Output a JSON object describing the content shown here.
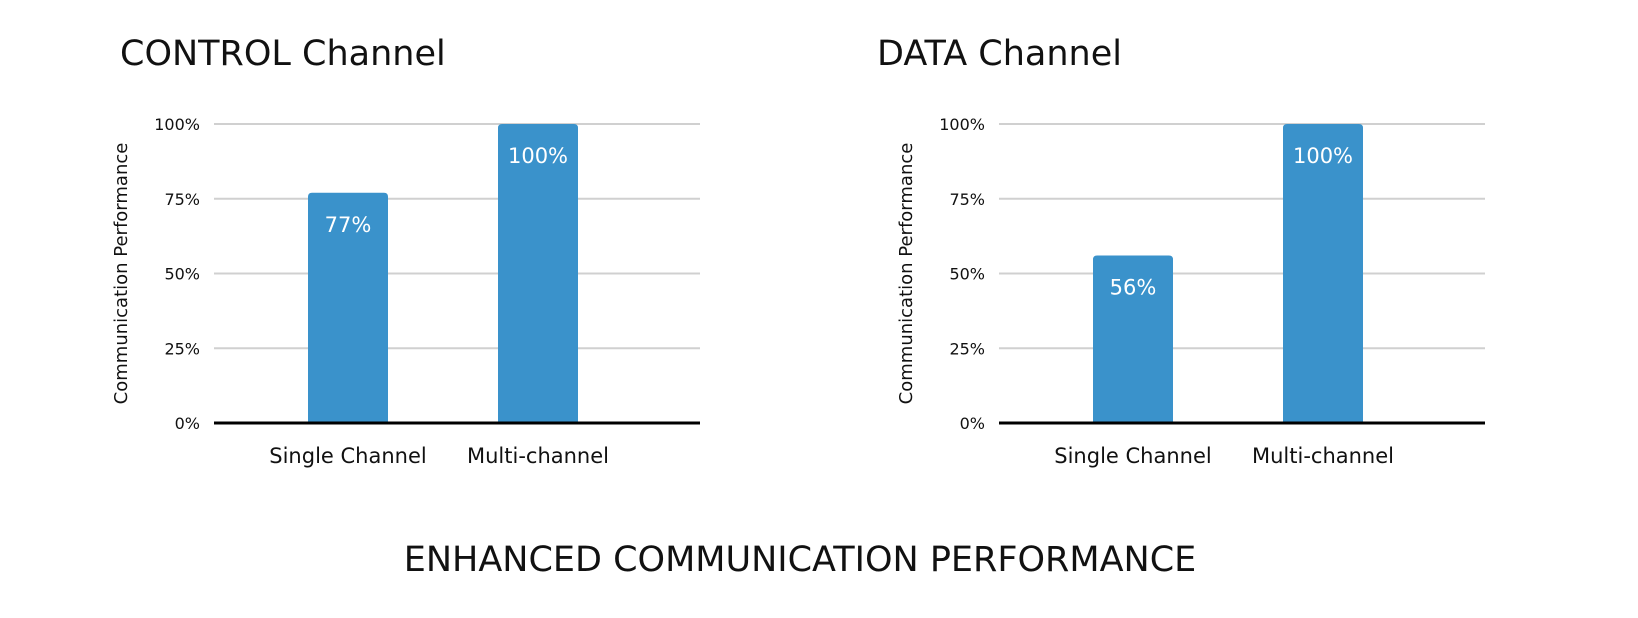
{
  "caption": "ENHANCED COMMUNICATION PERFORMANCE",
  "colors": {
    "bar": "#3a92cb",
    "grid": "#d0d0d0",
    "axis": "#000000",
    "bar_label": "#ffffff"
  },
  "chart_data": [
    {
      "type": "bar",
      "title": "CONTROL Channel",
      "ylabel": "Communication Performance",
      "xlabel": "",
      "categories": [
        "Single Channel",
        "Multi-channel"
      ],
      "values": [
        77,
        100
      ],
      "data_labels": [
        "77%",
        "100%"
      ],
      "ylim": [
        0,
        100
      ],
      "yticks": [
        0,
        25,
        50,
        75,
        100
      ],
      "ytick_labels": [
        "0%",
        "25%",
        "50%",
        "75%",
        "100%"
      ],
      "grid": true,
      "legend": "none"
    },
    {
      "type": "bar",
      "title": "DATA Channel",
      "ylabel": "Communication Performance",
      "xlabel": "",
      "categories": [
        "Single Channel",
        "Multi-channel"
      ],
      "values": [
        56,
        100
      ],
      "data_labels": [
        "56%",
        "100%"
      ],
      "ylim": [
        0,
        100
      ],
      "yticks": [
        0,
        25,
        50,
        75,
        100
      ],
      "ytick_labels": [
        "0%",
        "25%",
        "50%",
        "75%",
        "100%"
      ],
      "grid": true,
      "legend": "none"
    }
  ]
}
